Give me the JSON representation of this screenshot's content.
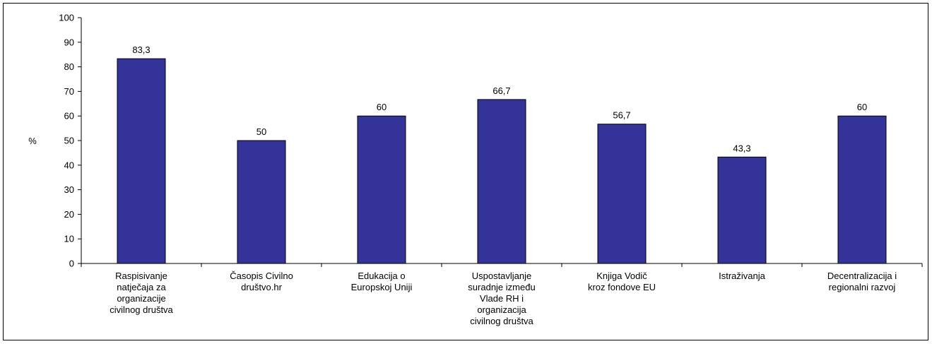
{
  "chart_data": {
    "type": "bar",
    "categories": [
      [
        "Raspisivanje",
        "natječaja za",
        "organizacije",
        "civilnog društva"
      ],
      [
        "Časopis Civilno",
        "društvo.hr"
      ],
      [
        "Edukacija o",
        "Europskoj Uniji"
      ],
      [
        "Uspostavljanje",
        "suradnje između",
        "Vlade RH i",
        "organizacija",
        "civilnog društva"
      ],
      [
        "Knjiga Vodič",
        "kroz fondove EU"
      ],
      [
        "Istraživanja"
      ],
      [
        "Decentralizacija i",
        "regionalni razvoj"
      ]
    ],
    "values": [
      83.3,
      50,
      60,
      66.7,
      56.7,
      43.3,
      60
    ],
    "data_labels": [
      "83,3",
      "50",
      "60",
      "66,7",
      "56,7",
      "43,3",
      "60"
    ],
    "ylabel": "%",
    "ylim": [
      0,
      100
    ],
    "yticks": [
      0,
      10,
      20,
      30,
      40,
      50,
      60,
      70,
      80,
      90,
      100
    ],
    "grid": false,
    "bar_color": "#333399",
    "bar_outline": "#000000"
  }
}
